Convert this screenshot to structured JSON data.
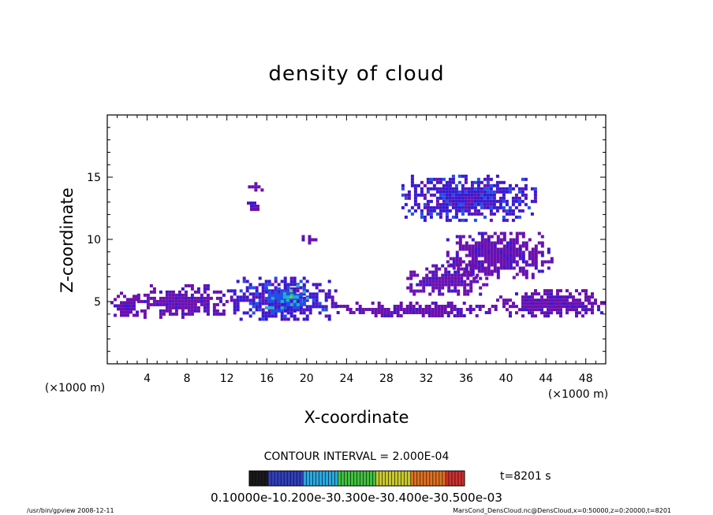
{
  "chart_data": {
    "type": "heatmap",
    "title": "density of cloud",
    "xlabel": "X-coordinate",
    "ylabel": "Z-coordinate",
    "x_unit": "(×1000 m)",
    "y_unit": "(×1000 m)",
    "xlim": [
      0,
      50
    ],
    "ylim": [
      0,
      20
    ],
    "x_ticks": [
      4,
      8,
      12,
      16,
      20,
      24,
      28,
      32,
      36,
      40,
      44,
      48
    ],
    "y_ticks": [
      5,
      10,
      15
    ],
    "contour_interval_text": "CONTOUR INTERVAL = 2.000E-04",
    "time_text": "t=8201 s",
    "colorbar": {
      "labels_text": "0.10000e-10.200e-30.300e-30.400e-30.500e-03",
      "values": [
        0.0001,
        0.0002,
        0.0003,
        0.0004,
        0.0005
      ],
      "colors": [
        "#1a1a1a",
        "#3040c0",
        "#2aa8e0",
        "#40c040",
        "#c8c830",
        "#e07020",
        "#d03030"
      ]
    },
    "cloud_regions": [
      {
        "x": [
          0,
          3.5
        ],
        "z": [
          3.8,
          5.8
        ],
        "level": 1
      },
      {
        "x": [
          3,
          12
        ],
        "z": [
          3.8,
          6.4
        ],
        "level": 1
      },
      {
        "x": [
          12,
          23
        ],
        "z": [
          3.6,
          7.0
        ],
        "level": 2
      },
      {
        "x": [
          15.5,
          20
        ],
        "z": [
          4.2,
          6.4
        ],
        "level": 3
      },
      {
        "x": [
          17,
          19
        ],
        "z": [
          5.0,
          6.0
        ],
        "level": 4
      },
      {
        "x": [
          23,
          39
        ],
        "z": [
          3.8,
          5.0
        ],
        "level": 1
      },
      {
        "x": [
          30,
          38
        ],
        "z": [
          5.6,
          8.0
        ],
        "level": 1
      },
      {
        "x": [
          34,
          44.5
        ],
        "z": [
          7.0,
          10.6
        ],
        "level": 1
      },
      {
        "x": [
          29.5,
          43
        ],
        "z": [
          11.6,
          15.2
        ],
        "level": 2
      },
      {
        "x": [
          39,
          50
        ],
        "z": [
          3.8,
          6.0
        ],
        "level": 1
      },
      {
        "x": [
          13.8,
          15.5
        ],
        "z": [
          14.0,
          14.6
        ],
        "level": 1
      },
      {
        "x": [
          14,
          15.2
        ],
        "z": [
          12.4,
          13.3
        ],
        "level": 1
      },
      {
        "x": [
          19.5,
          21
        ],
        "z": [
          9.8,
          10.6
        ],
        "level": 1
      }
    ]
  },
  "footer": {
    "program": "/usr/bin/gpview   2008-12-11",
    "source": "MarsCond_DensCloud.nc@DensCloud,x=0:50000,z=0:20000,t=8201"
  }
}
